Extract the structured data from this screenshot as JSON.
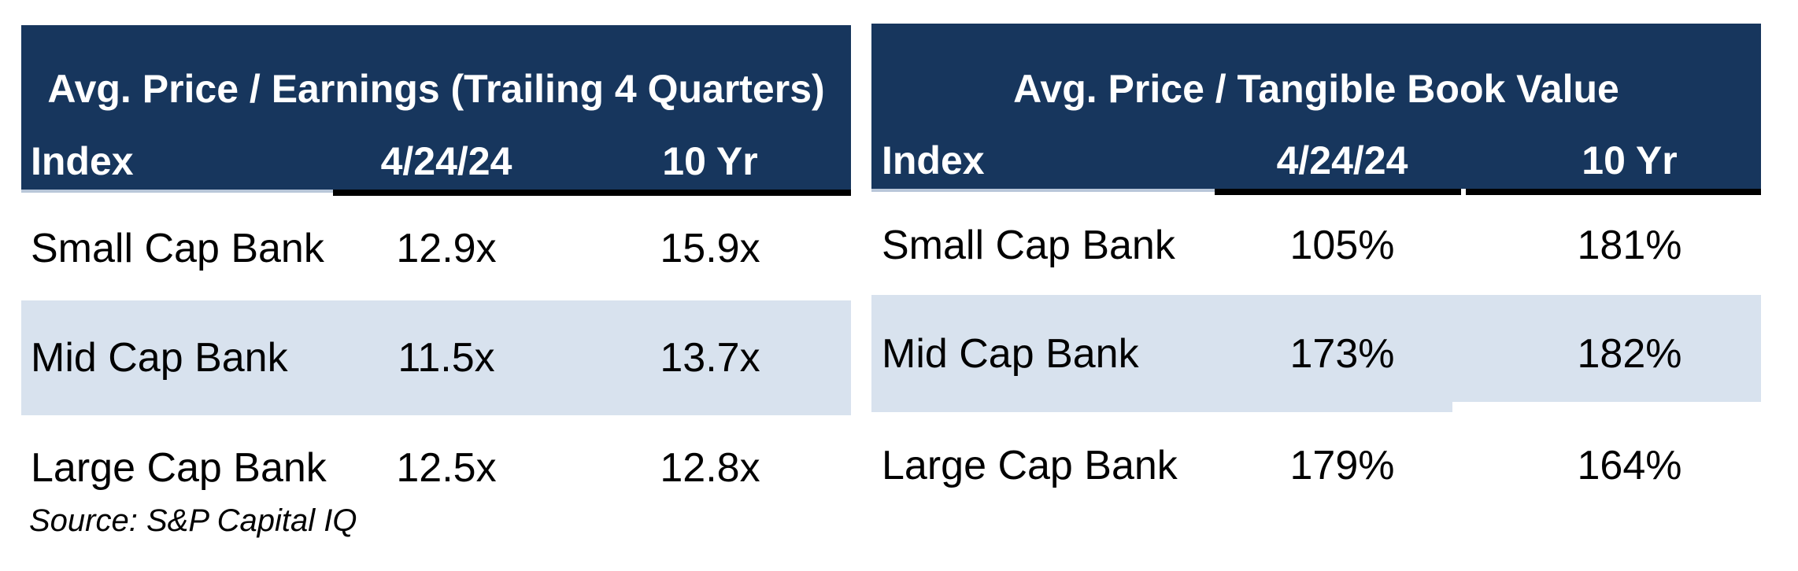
{
  "colors": {
    "page_background": "#FFFFFF",
    "header_background": "#17365D",
    "header_text": "#FFFFFF",
    "row_highlight": "#D8E2EE",
    "body_text": "#000000",
    "column_underline": "#000000"
  },
  "chart_data": [
    {
      "type": "table",
      "title": "Avg. Price / Earnings (Trailing 4 Quarters)",
      "columns": [
        "Index",
        "4/24/24",
        "10 Yr"
      ],
      "unit": "x",
      "rows": [
        {
          "index": "Small Cap Bank",
          "current": "12.9x",
          "ten_yr": "15.9x",
          "current_value": 12.9,
          "ten_yr_value": 15.9,
          "highlight": false
        },
        {
          "index": "Mid Cap Bank",
          "current": "11.5x",
          "ten_yr": "13.7x",
          "current_value": 11.5,
          "ten_yr_value": 13.7,
          "highlight": true
        },
        {
          "index": "Large Cap Bank",
          "current": "12.5x",
          "ten_yr": "12.8x",
          "current_value": 12.5,
          "ten_yr_value": 12.8,
          "highlight": false
        }
      ],
      "source": "Source: S&P Capital IQ",
      "layout": {
        "header_style": "dark-navy-banner",
        "value_columns_underlined": true,
        "alternating_highlight_row": 2
      }
    },
    {
      "type": "table",
      "title": "Avg. Price / Tangible Book Value",
      "columns": [
        "Index",
        "4/24/24",
        "10 Yr"
      ],
      "unit": "%",
      "rows": [
        {
          "index": "Small Cap Bank",
          "current": "105%",
          "ten_yr": "181%",
          "current_value": 105,
          "ten_yr_value": 181,
          "highlight": false
        },
        {
          "index": "Mid Cap Bank",
          "current": "173%",
          "ten_yr": "182%",
          "current_value": 173,
          "ten_yr_value": 182,
          "highlight": true
        },
        {
          "index": "Large Cap Bank",
          "current": "179%",
          "ten_yr": "164%",
          "current_value": 179,
          "ten_yr_value": 164,
          "highlight": false
        }
      ],
      "layout": {
        "header_style": "dark-navy-banner",
        "value_columns_underlined": true,
        "alternating_highlight_row": 2
      }
    }
  ]
}
